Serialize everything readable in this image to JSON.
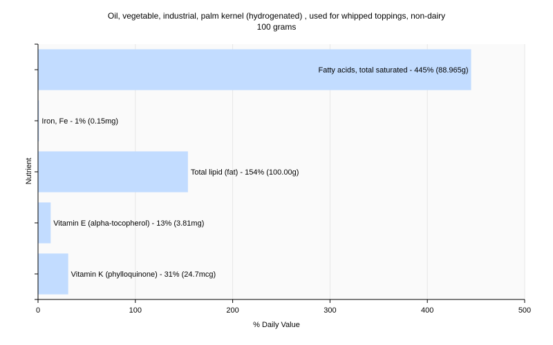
{
  "chart_data": {
    "type": "bar",
    "orientation": "horizontal",
    "title": "Oil, vegetable, industrial, palm kernel (hydrogenated) , used for whipped toppings, non-dairy",
    "subtitle": "100 grams",
    "xlabel": "% Daily Value",
    "ylabel": "Nutrient",
    "xlim": [
      0,
      500
    ],
    "xticks": [
      0,
      100,
      200,
      300,
      400,
      500
    ],
    "grid": true,
    "bar_color": "#c2dcff",
    "categories": [
      "Fatty acids, total saturated",
      "Iron, Fe",
      "Total lipid (fat)",
      "Vitamin E (alpha-tocopherol)",
      "Vitamin K (phylloquinone)"
    ],
    "values": [
      445,
      1,
      154,
      13,
      31
    ],
    "labels": [
      "Fatty acids, total saturated - 445% (88.965g)",
      "Iron, Fe - 1% (0.15mg)",
      "Total lipid (fat) - 154% (100.00g)",
      "Vitamin E (alpha-tocopherol) - 13% (3.81mg)",
      "Vitamin K (phylloquinone) - 31% (24.7mcg)"
    ]
  }
}
